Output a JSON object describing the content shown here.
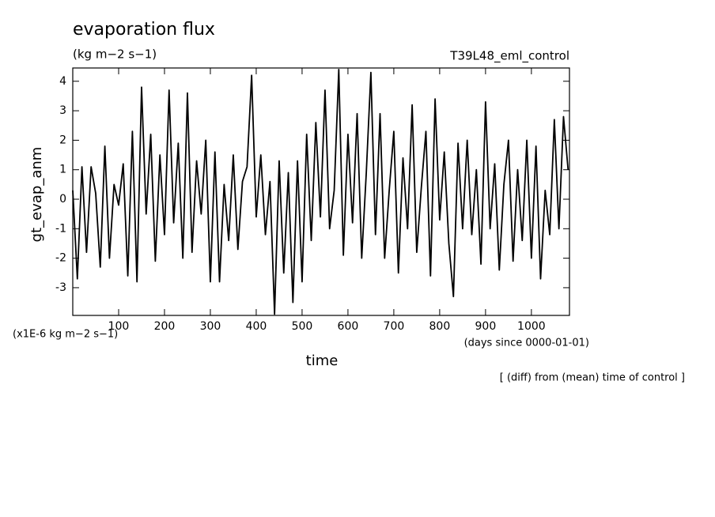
{
  "chart_data": {
    "type": "line",
    "title": "evaporation flux",
    "subtitle": "(kg m−2 s−1)",
    "run_label": "T39L48_eml_control",
    "ylabel": "gt_evap_anm",
    "unit_note": "(x1E-6 kg m−2 s−1)",
    "xlabel": "time",
    "x_unit": "(days since 0000-01-01)",
    "footnote": "[ (diff) from (mean) time of control ]",
    "xlim": [
      0,
      1083
    ],
    "ylim": [
      -3.94,
      4.45
    ],
    "xticks": [
      100,
      200,
      300,
      400,
      500,
      600,
      700,
      800,
      900,
      1000
    ],
    "yticks": [
      -3,
      -2,
      -1,
      0,
      1,
      2,
      3,
      4
    ],
    "x": [
      0,
      10,
      20,
      30,
      40,
      50,
      60,
      70,
      80,
      90,
      100,
      110,
      120,
      130,
      140,
      150,
      160,
      170,
      180,
      190,
      200,
      210,
      220,
      230,
      240,
      250,
      260,
      270,
      280,
      290,
      300,
      310,
      320,
      330,
      340,
      350,
      360,
      370,
      380,
      390,
      400,
      410,
      420,
      430,
      440,
      450,
      460,
      470,
      480,
      490,
      500,
      510,
      520,
      530,
      540,
      550,
      560,
      570,
      580,
      590,
      600,
      610,
      620,
      630,
      640,
      650,
      660,
      670,
      680,
      690,
      700,
      710,
      720,
      730,
      740,
      750,
      760,
      770,
      780,
      790,
      800,
      810,
      820,
      830,
      840,
      850,
      860,
      870,
      880,
      890,
      900,
      910,
      920,
      930,
      940,
      950,
      960,
      970,
      980,
      990,
      1000,
      1010,
      1020,
      1030,
      1040,
      1050,
      1060,
      1070,
      1080
    ],
    "series": [
      {
        "color": "#000000",
        "values": [
          0.3,
          -2.7,
          1.1,
          -1.8,
          1.1,
          0.2,
          -2.3,
          1.8,
          -2.0,
          0.5,
          -0.2,
          1.2,
          -2.6,
          2.3,
          -2.8,
          3.8,
          -0.5,
          2.2,
          -2.1,
          1.5,
          -1.2,
          3.7,
          -0.8,
          1.9,
          -2.0,
          3.6,
          -1.8,
          1.3,
          -0.5,
          2.0,
          -2.8,
          1.6,
          -2.8,
          0.5,
          -1.4,
          1.5,
          -1.7,
          0.6,
          1.1,
          4.2,
          -0.6,
          1.5,
          -1.2,
          0.6,
          -3.9,
          1.3,
          -2.5,
          0.9,
          -3.5,
          1.3,
          -2.8,
          2.2,
          -1.4,
          2.6,
          -0.6,
          3.7,
          -1.0,
          0.3,
          4.4,
          -1.9,
          2.2,
          -0.8,
          2.9,
          -2.0,
          0.9,
          4.3,
          -1.2,
          2.9,
          -2.0,
          0.3,
          2.3,
          -2.5,
          1.4,
          -1.0,
          3.2,
          -1.8,
          0.4,
          2.3,
          -2.6,
          3.4,
          -0.7,
          1.6,
          -1.5,
          -3.3,
          1.9,
          -1.0,
          2.0,
          -1.2,
          1.0,
          -2.2,
          3.3,
          -1.0,
          1.2,
          -2.4,
          0.5,
          2.0,
          -2.1,
          1.0,
          -1.4,
          2.0,
          -2.0,
          1.8,
          -2.7,
          0.3,
          -1.2,
          2.7,
          -1.0,
          2.8,
          1.0
        ]
      }
    ]
  }
}
